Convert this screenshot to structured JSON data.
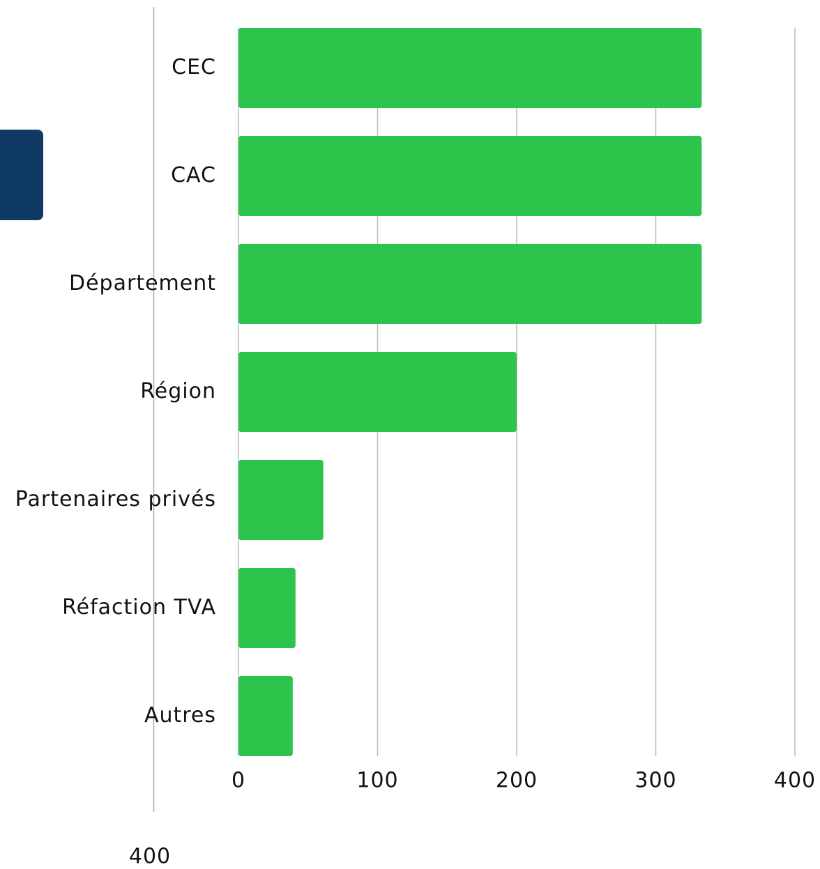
{
  "chart_data": {
    "type": "bar",
    "orientation": "horizontal",
    "categories": [
      "CEC",
      "CAC",
      "Département",
      "Région",
      "Partenaires privés",
      "Réfaction TVA",
      "Autres"
    ],
    "values": [
      333,
      333,
      333,
      200,
      61,
      41,
      39
    ],
    "color": "#2dc44b",
    "xlim": [
      0,
      400
    ],
    "xticks": [
      0,
      100,
      200,
      300,
      400
    ],
    "grid": true
  },
  "background_chart": {
    "tick_label": "400"
  }
}
